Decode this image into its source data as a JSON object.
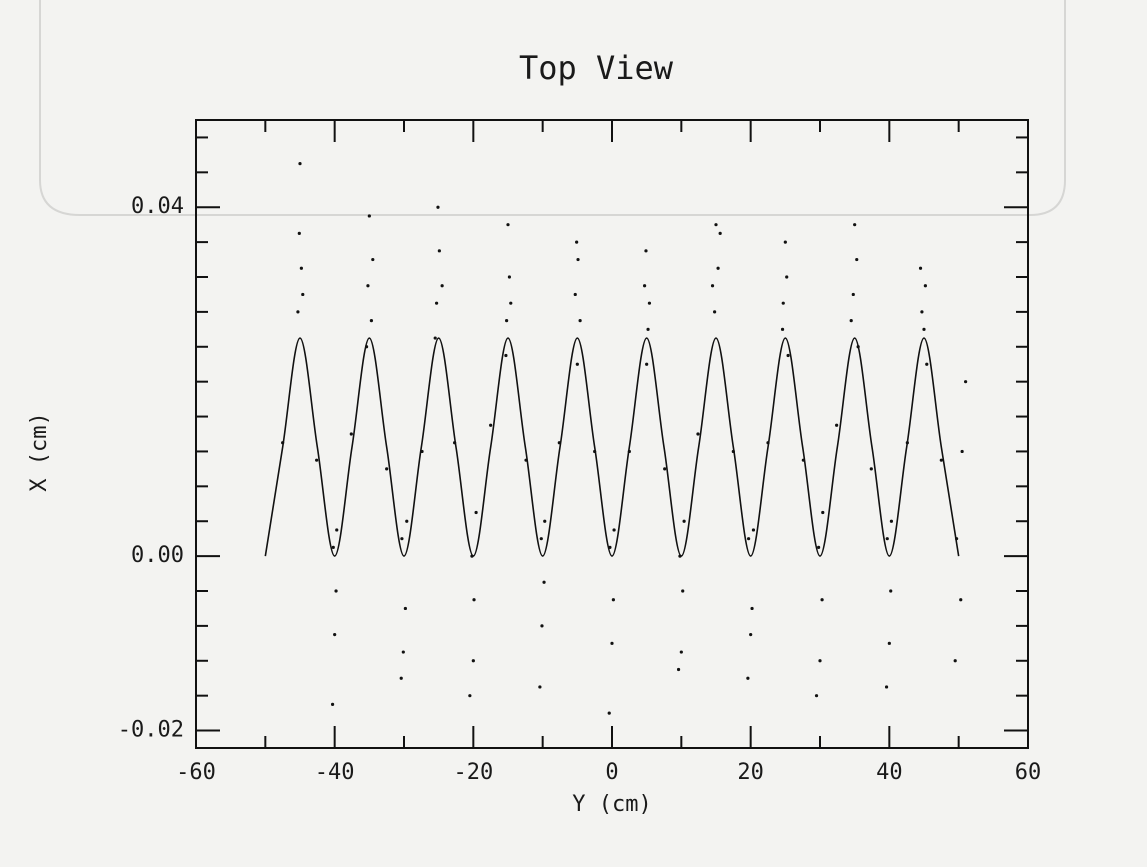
{
  "chart_data": {
    "type": "scatter",
    "title": "Top View",
    "x_label": "Y (cm)",
    "y_label": "X (cm)",
    "xlim": [
      -60,
      60
    ],
    "ylim": [
      -0.022,
      0.05
    ],
    "xticks": [
      -60,
      -40,
      -20,
      0,
      20,
      40,
      60
    ],
    "xminor_ticks": [
      -50,
      -30,
      -10,
      10,
      30,
      50
    ],
    "yticks": [
      {
        "value": -0.02,
        "label": "-0.02"
      },
      {
        "value": 0,
        "label": "0.00"
      },
      {
        "value": 0.04,
        "label": "0.04"
      }
    ],
    "yminor_ticks": [
      -0.016,
      -0.012,
      -0.008,
      -0.004,
      0.004,
      0.008,
      0.012,
      0.016,
      0.02,
      0.024,
      0.028,
      0.032,
      0.036,
      0.044,
      0.048
    ],
    "color": "#111111",
    "series": [
      {
        "kind": "points",
        "x": [
          -45.3,
          -44.8,
          -45.1,
          -44.6,
          -45,
          -47.5,
          -42.6,
          -40.2,
          -39.8,
          -40,
          -40.3,
          -39.7,
          -35.2,
          -34.7,
          -35,
          -34.5,
          -35.4,
          -37.6,
          -32.5,
          -30.3,
          -29.8,
          -30.1,
          -30.4,
          -29.6,
          -25.3,
          -24.9,
          -25.1,
          -24.5,
          -25.5,
          -27.4,
          -22.7,
          -20.2,
          -19.9,
          -20,
          -20.5,
          -19.6,
          -15.2,
          -14.8,
          -15,
          -14.6,
          -15.3,
          -17.5,
          -12.4,
          -10.2,
          -9.8,
          -10.1,
          -10.4,
          -9.7,
          -5.3,
          -4.9,
          -5.1,
          -4.6,
          -5,
          -7.6,
          -2.5,
          -0.3,
          0.2,
          0,
          -0.4,
          0.3,
          4.7,
          5.2,
          4.9,
          5.4,
          5,
          2.5,
          7.6,
          9.8,
          10.2,
          10,
          9.6,
          10.4,
          14.8,
          15.3,
          15,
          14.5,
          15.6,
          12.4,
          17.5,
          19.7,
          20.2,
          20,
          19.6,
          20.4,
          24.7,
          25.2,
          25,
          24.6,
          25.4,
          22.5,
          27.6,
          29.8,
          30.3,
          30,
          29.5,
          30.4,
          34.8,
          35.3,
          35,
          34.5,
          35.5,
          32.4,
          37.4,
          39.7,
          40.2,
          40,
          39.6,
          40.3,
          44.7,
          45.2,
          45,
          44.5,
          45.4,
          42.6,
          47.5,
          49.7,
          50.3,
          51,
          49.5,
          50.5
        ],
        "values": [
          0.028,
          0.033,
          0.037,
          0.03,
          0.045,
          0.013,
          0.011,
          0.001,
          -0.004,
          -0.009,
          -0.017,
          0.003,
          0.031,
          0.027,
          0.039,
          0.034,
          0.024,
          0.014,
          0.01,
          0.002,
          -0.006,
          -0.011,
          -0.014,
          0.004,
          0.029,
          0.035,
          0.04,
          0.031,
          0.025,
          0.012,
          0.013,
          0.0,
          -0.005,
          -0.012,
          -0.016,
          0.005,
          0.027,
          0.032,
          0.038,
          0.029,
          0.023,
          0.015,
          0.011,
          0.002,
          -0.003,
          -0.008,
          -0.015,
          0.004,
          0.03,
          0.034,
          0.036,
          0.027,
          0.022,
          0.013,
          0.012,
          0.001,
          -0.005,
          -0.01,
          -0.018,
          0.003,
          0.031,
          0.026,
          0.035,
          0.029,
          0.022,
          0.012,
          0.01,
          0.0,
          -0.004,
          -0.011,
          -0.013,
          0.004,
          0.028,
          0.033,
          0.038,
          0.031,
          0.037,
          0.014,
          0.012,
          0.002,
          -0.006,
          -0.009,
          -0.014,
          0.003,
          0.029,
          0.032,
          0.036,
          0.026,
          0.023,
          0.013,
          0.011,
          0.001,
          -0.005,
          -0.012,
          -0.016,
          0.005,
          0.03,
          0.034,
          0.038,
          0.027,
          0.024,
          0.015,
          0.01,
          0.002,
          -0.004,
          -0.01,
          -0.015,
          0.004,
          0.028,
          0.031,
          0.026,
          0.033,
          0.022,
          0.013,
          0.011,
          0.002,
          -0.005,
          0.02,
          -0.012,
          0.012
        ]
      },
      {
        "kind": "line",
        "x": [
          -50,
          -47.5,
          -45,
          -42.5,
          -40,
          -37.5,
          -35,
          -32.5,
          -30,
          -27.5,
          -25,
          -22.5,
          -20,
          -17.5,
          -15,
          -12.5,
          -10,
          -7.5,
          -5,
          -2.5,
          0,
          2.5,
          5,
          7.5,
          10,
          12.5,
          15,
          17.5,
          20,
          22.5,
          25,
          27.5,
          30,
          32.5,
          35,
          37.5,
          40,
          42.5,
          45,
          47.5,
          50
        ],
        "values": [
          0,
          0.0125,
          0.025,
          0.0125,
          0,
          0.0125,
          0.025,
          0.0125,
          0,
          0.0125,
          0.025,
          0.0125,
          0,
          0.0125,
          0.025,
          0.0125,
          0,
          0.0125,
          0.025,
          0.0125,
          0,
          0.0125,
          0.025,
          0.0125,
          0,
          0.0125,
          0.025,
          0.0125,
          0,
          0.0125,
          0.025,
          0.0125,
          0,
          0.0125,
          0.025,
          0.0125,
          0,
          0.0125,
          0.025,
          0.0125,
          0
        ]
      }
    ]
  }
}
